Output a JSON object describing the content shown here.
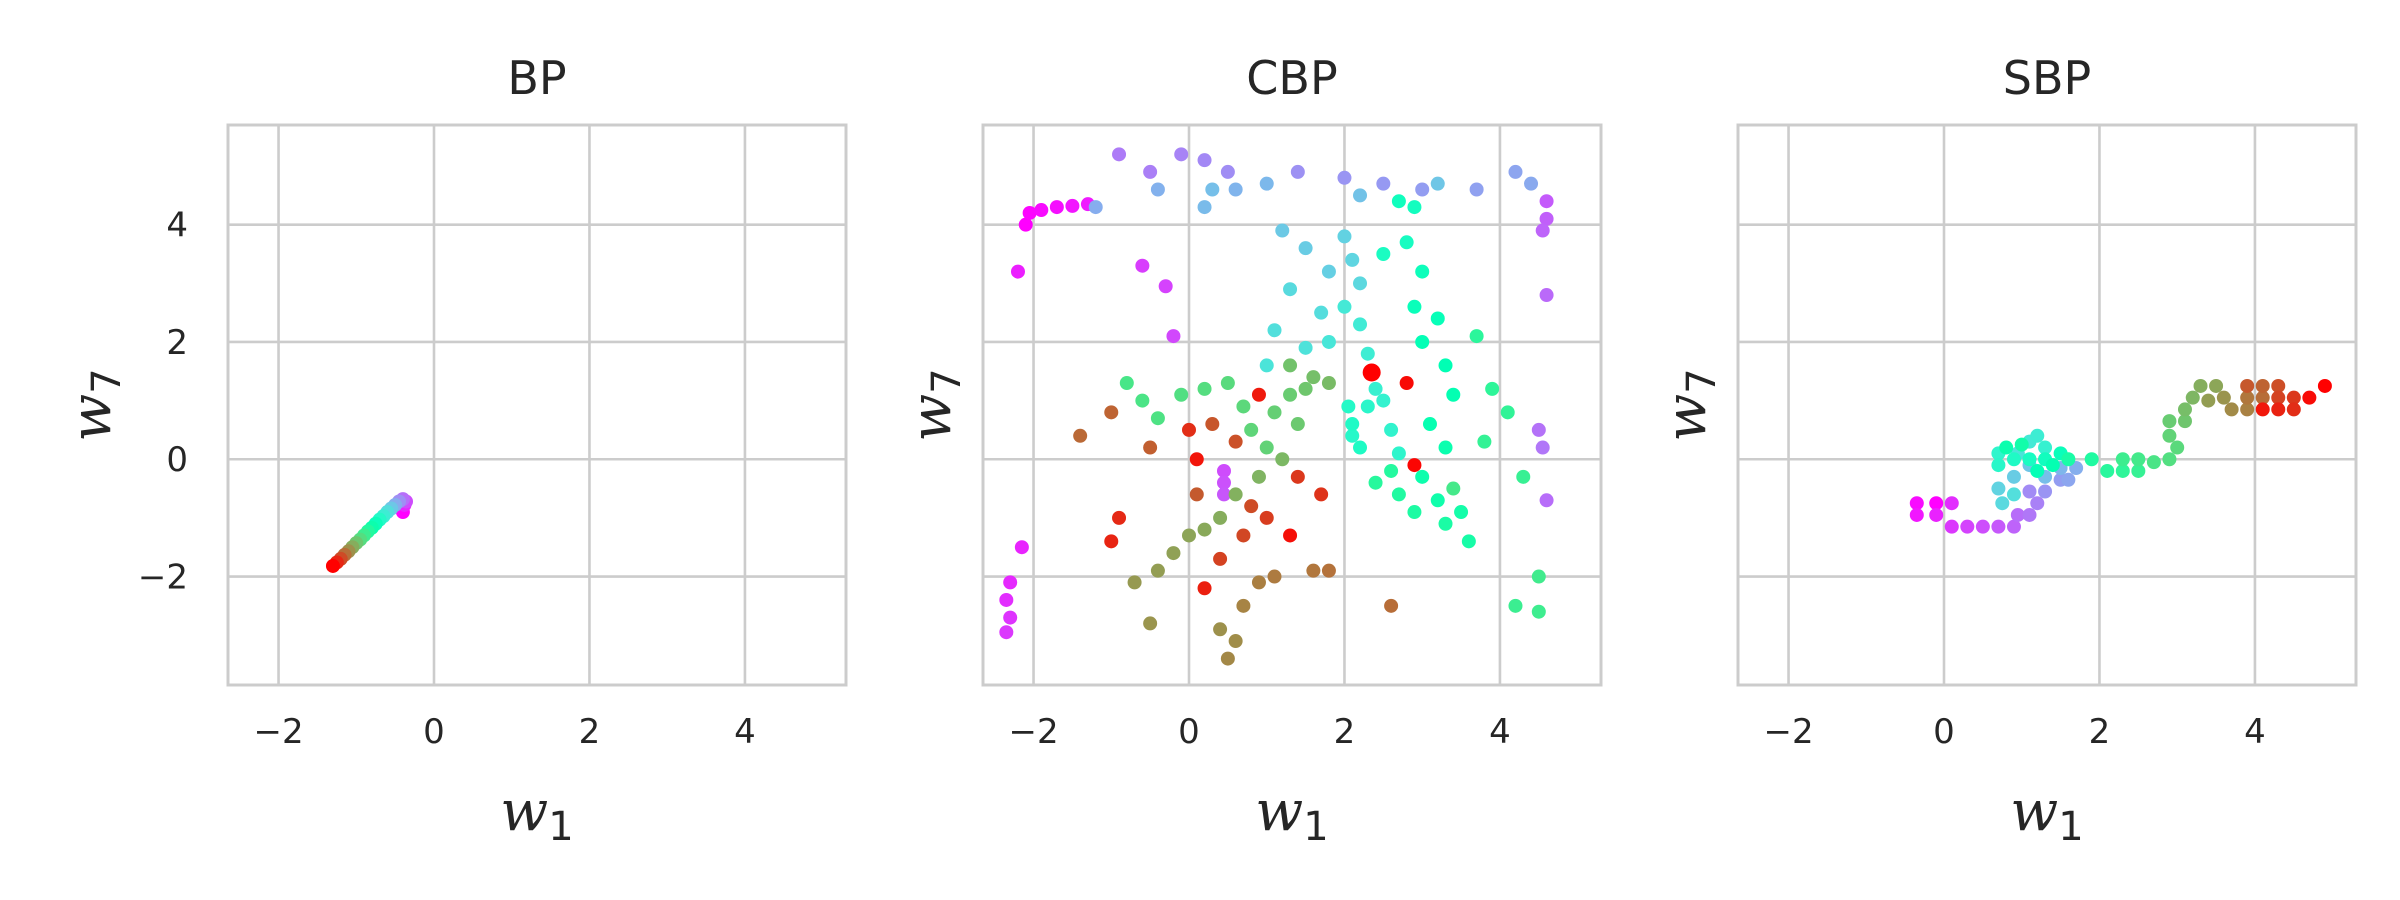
{
  "chart_data": [
    {
      "type": "scatter",
      "title": "BP",
      "xlabel": "w",
      "xlabel_sub": "1",
      "ylabel": "w",
      "ylabel_sub": "7",
      "xlim": [
        -2.65,
        5.3
      ],
      "ylim": [
        -3.85,
        5.7
      ],
      "xticks": [
        -2,
        0,
        2,
        4
      ],
      "yticks": [
        -2,
        0,
        2,
        4
      ],
      "show_yticklabels": true,
      "grid": true,
      "colormap": "rainbow",
      "color_by": "sample order (purple = first, red = last)",
      "points": [
        [
          -0.4,
          -0.9
        ],
        [
          -0.38,
          -0.78
        ],
        [
          -0.36,
          -0.72
        ],
        [
          -0.4,
          -0.68
        ],
        [
          -0.45,
          -0.72
        ],
        [
          -0.5,
          -0.78
        ],
        [
          -0.55,
          -0.84
        ],
        [
          -0.6,
          -0.9
        ],
        [
          -0.65,
          -0.97
        ],
        [
          -0.7,
          -1.03
        ],
        [
          -0.75,
          -1.1
        ],
        [
          -0.8,
          -1.17
        ],
        [
          -0.85,
          -1.23
        ],
        [
          -0.9,
          -1.3
        ],
        [
          -0.95,
          -1.37
        ],
        [
          -1.0,
          -1.43
        ],
        [
          -1.05,
          -1.5
        ],
        [
          -1.1,
          -1.57
        ],
        [
          -1.15,
          -1.63
        ],
        [
          -1.2,
          -1.7
        ],
        [
          -1.25,
          -1.76
        ],
        [
          -1.3,
          -1.82
        ]
      ]
    },
    {
      "type": "scatter",
      "title": "CBP",
      "xlabel": "w",
      "xlabel_sub": "1",
      "ylabel": "w",
      "ylabel_sub": "7",
      "xlim": [
        -2.65,
        5.3
      ],
      "ylim": [
        -3.85,
        5.7
      ],
      "xticks": [
        -2,
        0,
        2,
        4
      ],
      "yticks": [
        -2,
        0,
        2,
        4
      ],
      "show_yticklabels": false,
      "grid": true,
      "colormap": "rainbow",
      "color_by": "sample order (purple = first, red = last)",
      "points": [
        [
          -2.1,
          4.0
        ],
        [
          -2.05,
          4.2
        ],
        [
          -1.9,
          4.25
        ],
        [
          -1.7,
          4.3
        ],
        [
          -1.5,
          4.32
        ],
        [
          -1.3,
          4.35
        ],
        [
          -2.2,
          3.2
        ],
        [
          -2.15,
          -1.5
        ],
        [
          -2.3,
          -2.1
        ],
        [
          -2.35,
          -2.4
        ],
        [
          -2.3,
          -2.7
        ],
        [
          -2.35,
          -2.95
        ],
        [
          -0.6,
          3.3
        ],
        [
          -0.3,
          2.95
        ],
        [
          -0.2,
          2.1
        ],
        [
          0.45,
          -0.2
        ],
        [
          0.45,
          -0.4
        ],
        [
          0.45,
          -0.6
        ],
        [
          4.6,
          4.4
        ],
        [
          4.6,
          4.1
        ],
        [
          4.55,
          3.9
        ],
        [
          4.6,
          2.8
        ],
        [
          4.6,
          -0.7
        ],
        [
          4.5,
          0.5
        ],
        [
          4.55,
          0.2
        ],
        [
          -0.9,
          5.2
        ],
        [
          -0.5,
          4.9
        ],
        [
          -0.1,
          5.2
        ],
        [
          0.2,
          5.1
        ],
        [
          0.5,
          4.9
        ],
        [
          1.4,
          4.9
        ],
        [
          2.0,
          4.8
        ],
        [
          2.5,
          4.7
        ],
        [
          3.0,
          4.6
        ],
        [
          3.7,
          4.6
        ],
        [
          4.2,
          4.9
        ],
        [
          4.4,
          4.7
        ],
        [
          -1.2,
          4.3
        ],
        [
          -0.4,
          4.6
        ],
        [
          0.6,
          4.6
        ],
        [
          1.0,
          4.7
        ],
        [
          0.2,
          4.3
        ],
        [
          0.3,
          4.6
        ],
        [
          2.2,
          4.5
        ],
        [
          3.2,
          4.7
        ],
        [
          1.2,
          3.9
        ],
        [
          1.5,
          3.6
        ],
        [
          1.8,
          3.2
        ],
        [
          2.0,
          3.8
        ],
        [
          2.1,
          3.4
        ],
        [
          2.2,
          3.0
        ],
        [
          1.3,
          2.9
        ],
        [
          1.7,
          2.5
        ],
        [
          1.1,
          2.2
        ],
        [
          1.5,
          1.9
        ],
        [
          1.0,
          1.6
        ],
        [
          1.8,
          2.0
        ],
        [
          2.0,
          2.6
        ],
        [
          2.2,
          2.3
        ],
        [
          2.3,
          1.8
        ],
        [
          2.35,
          1.5
        ],
        [
          2.4,
          1.2
        ],
        [
          2.5,
          1.0
        ],
        [
          2.6,
          0.5
        ],
        [
          2.7,
          0.1
        ],
        [
          2.3,
          0.9
        ],
        [
          2.1,
          0.4
        ],
        [
          2.05,
          0.9
        ],
        [
          2.1,
          0.6
        ],
        [
          2.2,
          0.2
        ],
        [
          2.5,
          3.5
        ],
        [
          2.8,
          3.7
        ],
        [
          2.9,
          4.3
        ],
        [
          2.7,
          4.4
        ],
        [
          3.0,
          3.2
        ],
        [
          2.9,
          2.6
        ],
        [
          3.2,
          2.4
        ],
        [
          3.0,
          2.0
        ],
        [
          3.3,
          1.6
        ],
        [
          3.4,
          1.1
        ],
        [
          3.1,
          0.6
        ],
        [
          3.3,
          0.2
        ],
        [
          3.0,
          -0.3
        ],
        [
          3.2,
          -0.7
        ],
        [
          3.5,
          -0.9
        ],
        [
          3.6,
          -1.4
        ],
        [
          3.3,
          -1.1
        ],
        [
          2.9,
          -0.9
        ],
        [
          2.7,
          -0.6
        ],
        [
          2.6,
          -0.2
        ],
        [
          2.4,
          -0.4
        ],
        [
          3.7,
          2.1
        ],
        [
          3.9,
          1.2
        ],
        [
          4.1,
          0.8
        ],
        [
          3.8,
          0.3
        ],
        [
          4.3,
          -0.3
        ],
        [
          4.2,
          -2.5
        ],
        [
          4.5,
          -2.6
        ],
        [
          4.5,
          -2.0
        ],
        [
          3.4,
          -0.5
        ],
        [
          -0.8,
          1.3
        ],
        [
          -0.6,
          1.0
        ],
        [
          -0.4,
          0.7
        ],
        [
          -0.1,
          1.1
        ],
        [
          0.2,
          1.2
        ],
        [
          0.5,
          1.3
        ],
        [
          0.7,
          0.9
        ],
        [
          0.8,
          0.5
        ],
        [
          1.0,
          0.2
        ],
        [
          1.1,
          0.8
        ],
        [
          1.3,
          1.1
        ],
        [
          1.4,
          0.6
        ],
        [
          1.5,
          1.2
        ],
        [
          1.3,
          1.6
        ],
        [
          1.6,
          1.4
        ],
        [
          1.8,
          1.3
        ],
        [
          1.2,
          0.0
        ],
        [
          0.9,
          -0.3
        ],
        [
          0.6,
          -0.6
        ],
        [
          0.4,
          -1.0
        ],
        [
          0.2,
          -1.2
        ],
        [
          0.0,
          -1.3
        ],
        [
          -0.2,
          -1.6
        ],
        [
          -0.4,
          -1.9
        ],
        [
          -0.7,
          -2.1
        ],
        [
          -0.5,
          -2.8
        ],
        [
          0.4,
          -2.9
        ],
        [
          0.6,
          -3.1
        ],
        [
          0.5,
          -3.4
        ],
        [
          0.7,
          -2.5
        ],
        [
          0.9,
          -2.1
        ],
        [
          1.1,
          -2.0
        ],
        [
          1.6,
          -1.9
        ],
        [
          1.8,
          -1.9
        ],
        [
          2.6,
          -2.5
        ],
        [
          -1.4,
          0.4
        ],
        [
          -1.0,
          0.8
        ],
        [
          -0.5,
          0.2
        ],
        [
          0.1,
          -0.6
        ],
        [
          0.3,
          0.6
        ],
        [
          0.6,
          0.3
        ],
        [
          0.8,
          -0.8
        ],
        [
          0.7,
          -1.3
        ],
        [
          0.4,
          -1.7
        ],
        [
          1.0,
          -1.0
        ],
        [
          1.4,
          -0.3
        ],
        [
          1.7,
          -0.6
        ],
        [
          0.0,
          0.5
        ],
        [
          -0.9,
          -1.0
        ],
        [
          -1.0,
          -1.4
        ],
        [
          0.2,
          -2.2
        ],
        [
          0.9,
          1.1
        ],
        [
          0.1,
          0.0
        ],
        [
          1.3,
          -1.3
        ],
        [
          2.8,
          1.3
        ],
        [
          2.9,
          -0.1
        ],
        [
          2.35,
          1.48
        ]
      ]
    },
    {
      "type": "scatter",
      "title": "SBP",
      "xlabel": "w",
      "xlabel_sub": "1",
      "ylabel": "w",
      "ylabel_sub": "7",
      "xlim": [
        -2.65,
        5.3
      ],
      "ylim": [
        -3.85,
        5.7
      ],
      "xticks": [
        -2,
        0,
        2,
        4
      ],
      "yticks": [
        -2,
        0,
        2,
        4
      ],
      "show_yticklabels": false,
      "grid": true,
      "colormap": "rainbow",
      "color_by": "sample order (purple = first, red = last)",
      "points": [
        [
          -0.1,
          -0.75
        ],
        [
          -0.35,
          -0.75
        ],
        [
          -0.35,
          -0.95
        ],
        [
          -0.1,
          -0.95
        ],
        [
          0.1,
          -0.75
        ],
        [
          0.1,
          -1.15
        ],
        [
          0.3,
          -1.15
        ],
        [
          0.5,
          -1.15
        ],
        [
          0.7,
          -1.15
        ],
        [
          0.9,
          -1.15
        ],
        [
          0.95,
          -0.95
        ],
        [
          1.1,
          -0.95
        ],
        [
          1.2,
          -0.75
        ],
        [
          1.1,
          -0.55
        ],
        [
          1.3,
          -0.55
        ],
        [
          1.5,
          -0.35
        ],
        [
          1.6,
          -0.35
        ],
        [
          1.7,
          -0.15
        ],
        [
          1.5,
          -0.15
        ],
        [
          1.3,
          -0.3
        ],
        [
          1.1,
          -0.1
        ],
        [
          0.9,
          -0.3
        ],
        [
          0.7,
          -0.5
        ],
        [
          0.75,
          -0.75
        ],
        [
          0.9,
          -0.6
        ],
        [
          0.95,
          0.1
        ],
        [
          1.1,
          0.3
        ],
        [
          1.2,
          0.4
        ],
        [
          1.3,
          0.2
        ],
        [
          0.7,
          0.1
        ],
        [
          0.7,
          -0.1
        ],
        [
          0.9,
          0.0
        ],
        [
          1.1,
          0.0
        ],
        [
          1.3,
          0.0
        ],
        [
          1.5,
          0.1
        ],
        [
          1.2,
          -0.2
        ],
        [
          1.4,
          -0.1
        ],
        [
          0.8,
          0.2
        ],
        [
          1.0,
          0.25
        ],
        [
          1.6,
          0.0
        ],
        [
          1.9,
          0.0
        ],
        [
          2.1,
          -0.2
        ],
        [
          2.3,
          -0.2
        ],
        [
          2.5,
          -0.2
        ],
        [
          2.3,
          0.0
        ],
        [
          2.5,
          0.0
        ],
        [
          2.7,
          -0.05
        ],
        [
          2.9,
          0.0
        ],
        [
          3.0,
          0.2
        ],
        [
          2.9,
          0.4
        ],
        [
          2.9,
          0.65
        ],
        [
          3.1,
          0.65
        ],
        [
          3.1,
          0.85
        ],
        [
          3.2,
          1.05
        ],
        [
          3.3,
          1.25
        ],
        [
          3.5,
          1.25
        ],
        [
          3.4,
          1.0
        ],
        [
          3.6,
          1.05
        ],
        [
          3.7,
          0.85
        ],
        [
          3.9,
          0.85
        ],
        [
          3.9,
          1.05
        ],
        [
          4.1,
          1.05
        ],
        [
          4.1,
          1.25
        ],
        [
          3.9,
          1.25
        ],
        [
          4.3,
          1.25
        ],
        [
          4.3,
          1.05
        ],
        [
          4.5,
          1.05
        ],
        [
          4.5,
          0.85
        ],
        [
          4.3,
          0.85
        ],
        [
          4.1,
          0.85
        ],
        [
          4.7,
          1.05
        ],
        [
          4.9,
          1.25
        ]
      ]
    }
  ]
}
